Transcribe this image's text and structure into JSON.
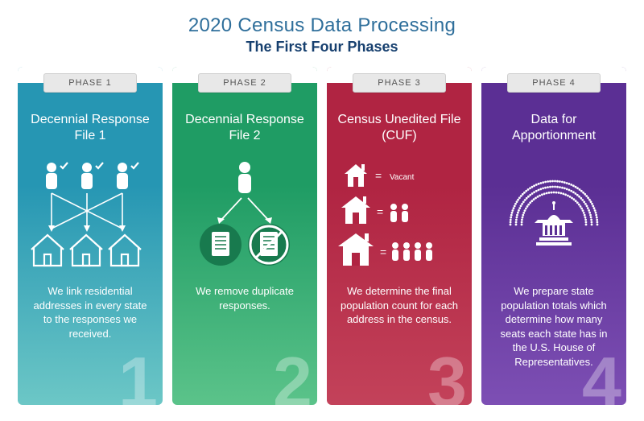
{
  "header": {
    "title": "2020 Census Data Processing",
    "title_color": "#2f6f9b",
    "subtitle": "The First Four Phases",
    "subtitle_color": "#17406f"
  },
  "cards": [
    {
      "phase_label": "PHASE 1",
      "title": "Decennial Response File 1",
      "description": "We link residential addresses in every state to the responses we received.",
      "number": "1",
      "bg_top": "#2696b3",
      "bg_bottom": "#6cc7c6"
    },
    {
      "phase_label": "PHASE 2",
      "title": "Decennial Response File 2",
      "description": "We remove duplicate responses.",
      "number": "2",
      "bg_top": "#1f9c64",
      "bg_bottom": "#5bc38a"
    },
    {
      "phase_label": "PHASE 3",
      "title": "Census Unedited File (CUF)",
      "description": "We determine the final population count for each address in the census.",
      "vacant_label": "Vacant",
      "number": "3",
      "bg_top": "#b02442",
      "bg_bottom": "#c3425a"
    },
    {
      "phase_label": "PHASE 4",
      "title": "Data for Apportionment",
      "description": "We prepare state population totals which determine how many seats each state has in the U.S. House of Representatives.",
      "number": "4",
      "bg_top": "#5b2f94",
      "bg_bottom": "#7d4fb4"
    }
  ]
}
